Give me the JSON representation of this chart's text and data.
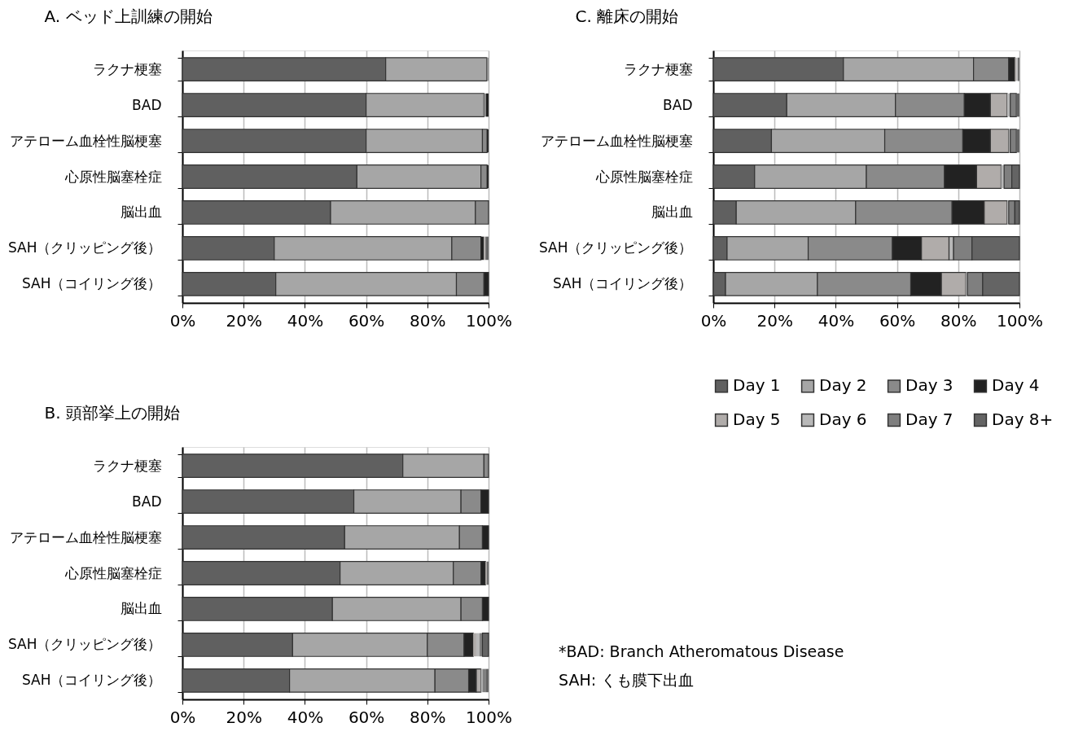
{
  "chart_data": [
    {
      "type": "bar",
      "title": "A.  ベッド上訓練の開始",
      "orientation": "horizontal",
      "stacked": true,
      "grid": "x",
      "legend": false,
      "categories": [
        "ラクナ梗塞",
        "BAD",
        "アテローム血栓性脳梗塞",
        "心原性脳塞栓症",
        "脳出血",
        "SAH（クリッピング後）",
        "SAH（コイリング後）"
      ],
      "xlim": [
        0,
        100
      ],
      "xticks": [
        {
          "value": 0,
          "label": "0%"
        },
        {
          "value": 20,
          "label": "20%"
        },
        {
          "value": 40,
          "label": "40%"
        },
        {
          "value": 60,
          "label": "60%"
        },
        {
          "value": 80,
          "label": "80%"
        },
        {
          "value": 100,
          "label": "100%"
        }
      ],
      "series": [
        {
          "color": "#606060",
          "values": [
            66.4,
            60,
            60,
            57,
            48.4,
            30,
            30.5
          ]
        },
        {
          "color": "#a6a6a6",
          "values": [
            33,
            38.5,
            38,
            40.5,
            47.3,
            58,
            59
          ]
        },
        {
          "color": "#8a8a8a",
          "values": [
            0.6,
            0.7,
            1.5,
            2,
            4.3,
            9.5,
            9
          ]
        },
        {
          "color": "#222222",
          "values": [
            0,
            0.8,
            0.5,
            0.5,
            0,
            1,
            1.5
          ]
        },
        {
          "color": "#b0acaa",
          "values": [
            0,
            0,
            0,
            0,
            0,
            0.5,
            0
          ]
        },
        {
          "color": "#b8b8b8",
          "values": [
            0,
            0,
            0,
            0,
            0,
            0,
            0
          ]
        },
        {
          "color": "#7f7f7f",
          "values": [
            0,
            0,
            0,
            0,
            0,
            0,
            0
          ]
        },
        {
          "color": "#646464",
          "values": [
            0,
            0,
            0,
            0,
            0,
            1,
            0
          ]
        }
      ]
    },
    {
      "type": "bar",
      "title": "B.  頭部挙上の開始",
      "orientation": "horizontal",
      "stacked": true,
      "grid": "x",
      "legend": false,
      "categories": [
        "ラクナ梗塞",
        "BAD",
        "アテローム血栓性脳梗塞",
        "心原性脳塞栓症",
        "脳出血",
        "SAH（クリッピング後）",
        "SAH（コイリング後）"
      ],
      "xlim": [
        0,
        100
      ],
      "xticks": [
        {
          "value": 0,
          "label": "0%"
        },
        {
          "value": 20,
          "label": "20%"
        },
        {
          "value": 40,
          "label": "40%"
        },
        {
          "value": 60,
          "label": "60%"
        },
        {
          "value": 80,
          "label": "80%"
        },
        {
          "value": 100,
          "label": "100%"
        }
      ],
      "series": [
        {
          "color": "#606060",
          "values": [
            72,
            56,
            53,
            51.5,
            49,
            36,
            35
          ]
        },
        {
          "color": "#a6a6a6",
          "values": [
            26.5,
            35,
            37.5,
            37,
            42,
            44,
            47.5
          ]
        },
        {
          "color": "#8a8a8a",
          "values": [
            1.5,
            6.5,
            7.5,
            9,
            7,
            12,
            11
          ]
        },
        {
          "color": "#222222",
          "values": [
            0,
            2.5,
            2,
            1.5,
            2,
            3,
            2.5
          ]
        },
        {
          "color": "#b0acaa",
          "values": [
            0,
            0,
            0,
            0.5,
            0,
            1,
            1.5
          ]
        },
        {
          "color": "#b8b8b8",
          "values": [
            0,
            0,
            0,
            0,
            0,
            1,
            0.5
          ]
        },
        {
          "color": "#7f7f7f",
          "values": [
            0,
            0,
            0,
            0,
            0,
            1,
            1
          ]
        },
        {
          "color": "#646464",
          "values": [
            0,
            0,
            0,
            0.5,
            0,
            2,
            1
          ]
        }
      ]
    },
    {
      "type": "bar",
      "title": "C.  離床の開始",
      "orientation": "horizontal",
      "stacked": true,
      "grid": "x",
      "legend": "bottom",
      "categories": [
        "ラクナ梗塞",
        "BAD",
        "アテローム血栓性脳梗塞",
        "心原性脳塞栓症",
        "脳出血",
        "SAH（クリッピング後）",
        "SAH（コイリング後）"
      ],
      "xlim": [
        0,
        100
      ],
      "xticks": [
        {
          "value": 0,
          "label": "0%"
        },
        {
          "value": 20,
          "label": "20%"
        },
        {
          "value": 40,
          "label": "40%"
        },
        {
          "value": 60,
          "label": "60%"
        },
        {
          "value": 80,
          "label": "80%"
        },
        {
          "value": 100,
          "label": "100%"
        }
      ],
      "series": [
        {
          "name": "Day 1",
          "color": "#606060",
          "values": [
            42.5,
            24,
            19,
            13.5,
            7.5,
            4.5,
            4
          ]
        },
        {
          "name": "Day 2",
          "color": "#a6a6a6",
          "values": [
            42.5,
            35.5,
            37,
            36.5,
            39,
            26.5,
            30
          ]
        },
        {
          "name": "Day 3",
          "color": "#8a8a8a",
          "values": [
            11.5,
            22.5,
            25.5,
            25.5,
            31.5,
            27.5,
            30.5
          ]
        },
        {
          "name": "Day 4",
          "color": "#222222",
          "values": [
            2,
            8.5,
            9,
            10.5,
            10.5,
            9.5,
            10
          ]
        },
        {
          "name": "Day 5",
          "color": "#b0acaa",
          "values": [
            0.5,
            5.5,
            6,
            8,
            7.5,
            9,
            8
          ]
        },
        {
          "name": "Day 6",
          "color": "#b8b8b8",
          "values": [
            0.5,
            1,
            0.5,
            1,
            0.5,
            1.5,
            0.5
          ]
        },
        {
          "name": "Day 7",
          "color": "#7f7f7f",
          "values": [
            0,
            2,
            2,
            2.5,
            2,
            6,
            5
          ]
        },
        {
          "name": "Day 8+",
          "color": "#646464",
          "values": [
            0.5,
            1,
            1,
            2.5,
            1.5,
            15.5,
            12
          ]
        }
      ],
      "annotations": [
        "*BAD: Branch Atheromatous Disease",
        "SAH: くも膜下出血"
      ]
    }
  ]
}
